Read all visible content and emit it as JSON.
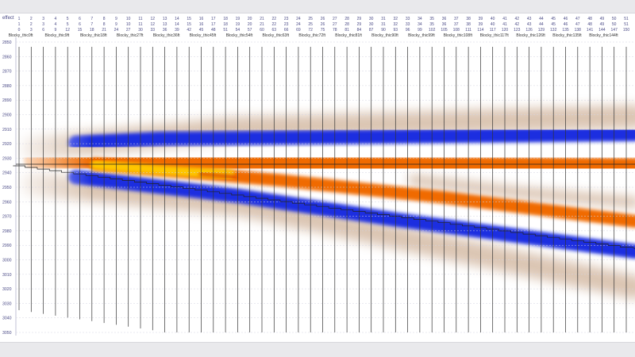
{
  "header": {
    "effect_label": "effect"
  },
  "traces": {
    "count": 51,
    "row1": [
      1,
      2,
      3,
      4,
      5,
      6,
      7,
      8,
      9,
      10,
      11,
      12,
      13,
      14,
      15,
      16,
      17,
      18,
      19,
      20,
      21,
      22,
      23,
      24,
      25,
      26,
      27,
      28,
      29,
      30,
      31,
      32,
      33,
      34,
      35,
      36,
      37,
      38,
      39,
      40,
      41,
      42,
      43,
      44,
      45,
      46,
      47,
      48,
      49,
      50,
      51
    ],
    "row2": [
      1,
      2,
      3,
      4,
      5,
      6,
      7,
      8,
      9,
      10,
      11,
      12,
      13,
      14,
      15,
      16,
      17,
      18,
      19,
      20,
      21,
      22,
      23,
      24,
      25,
      26,
      27,
      28,
      29,
      30,
      31,
      32,
      33,
      34,
      35,
      36,
      37,
      38,
      39,
      40,
      41,
      42,
      43,
      44,
      45,
      46,
      47,
      48,
      49,
      50,
      51
    ],
    "row3": [
      0,
      3,
      6,
      9,
      12,
      15,
      18,
      21,
      24,
      27,
      30,
      33,
      36,
      39,
      42,
      45,
      48,
      51,
      54,
      57,
      60,
      63,
      66,
      69,
      72,
      75,
      78,
      81,
      84,
      87,
      90,
      93,
      96,
      99,
      102,
      105,
      108,
      111,
      114,
      117,
      120,
      123,
      126,
      129,
      132,
      135,
      138,
      141,
      144,
      147,
      150
    ],
    "names": [
      "Blocky_thic0ft",
      "Blocky_thic9ft",
      "Blocky_thic18ft",
      "Blocky_thic27ft",
      "Blocky_thic36ft",
      "Blocky_thic45ft",
      "Blocky_thic54ft",
      "Blocky_thic63ft",
      "Blocky_thic72ft",
      "Blocky_thic81ft",
      "Blocky_thic90ft",
      "Blocky_thic99ft",
      "Blocky_thic108ft",
      "Blocky_thic117ft",
      "Blocky_thic126ft",
      "Blocky_thic135ft",
      "Blocky_thic144ft"
    ]
  },
  "depth_axis": {
    "ticks": [
      2850,
      2860,
      2870,
      2880,
      2890,
      2900,
      2910,
      2920,
      2930,
      2940,
      2950,
      2960,
      2970,
      2980,
      2990,
      3000,
      3010,
      3020,
      3030,
      3040,
      3050
    ]
  },
  "colors": {
    "blue": "#1f2fe0",
    "orange": "#f06a00",
    "yellow": "#ffcc00",
    "brown": "#b08058",
    "red": "#c80000",
    "label_blue": "#4a4a86"
  }
}
